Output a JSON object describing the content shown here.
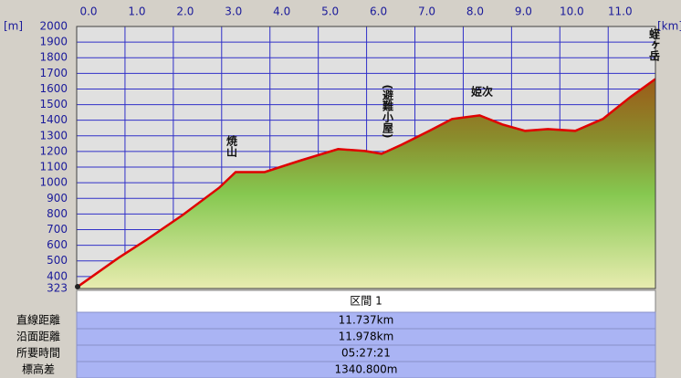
{
  "chart_data": {
    "type": "area",
    "x_unit": "[km]",
    "y_unit": "[m]",
    "x": [
      0,
      0.87,
      1.44,
      2.19,
      2.95,
      3.29,
      3.89,
      4.65,
      5.41,
      5.97,
      6.31,
      6.73,
      7.3,
      7.77,
      8.34,
      8.81,
      9.28,
      9.75,
      10.32,
      10.89,
      11.46,
      11.978
    ],
    "values": [
      330,
      520,
      634,
      793,
      968,
      1068,
      1068,
      1144,
      1215,
      1203,
      1185,
      1244,
      1332,
      1408,
      1431,
      1373,
      1332,
      1343,
      1332,
      1408,
      1549,
      1664
    ],
    "color": "#e00000",
    "xlim": [
      0,
      11.978
    ],
    "ylim": [
      323,
      2000
    ],
    "xticks": [
      {
        "value": 0,
        "label": "0.0"
      },
      {
        "value": 1,
        "label": "1.0"
      },
      {
        "value": 2,
        "label": "2.0"
      },
      {
        "value": 3,
        "label": "3.0"
      },
      {
        "value": 4,
        "label": "4.0"
      },
      {
        "value": 5,
        "label": "5.0"
      },
      {
        "value": 6,
        "label": "6.0"
      },
      {
        "value": 7,
        "label": "7.0"
      },
      {
        "value": 8,
        "label": "8.0"
      },
      {
        "value": 9,
        "label": "9.0"
      },
      {
        "value": 10,
        "label": "10.0"
      },
      {
        "value": 11,
        "label": "11.0"
      }
    ],
    "yticks": [
      323,
      400,
      500,
      600,
      700,
      800,
      900,
      1000,
      1100,
      1200,
      1300,
      1400,
      1500,
      1600,
      1700,
      1800,
      1900,
      2000
    ],
    "grid": true,
    "annotations": [
      "焼山",
      "(避難小屋)",
      "姫次",
      "蛭ヶ岳"
    ]
  },
  "table": {
    "header": "区間 1",
    "rows": [
      [
        "直線距離",
        "11.737km"
      ],
      [
        "沿面距離",
        "11.978km"
      ],
      [
        "所要時間",
        "05:27:21"
      ],
      [
        "標高差",
        "1340.800m"
      ]
    ]
  }
}
